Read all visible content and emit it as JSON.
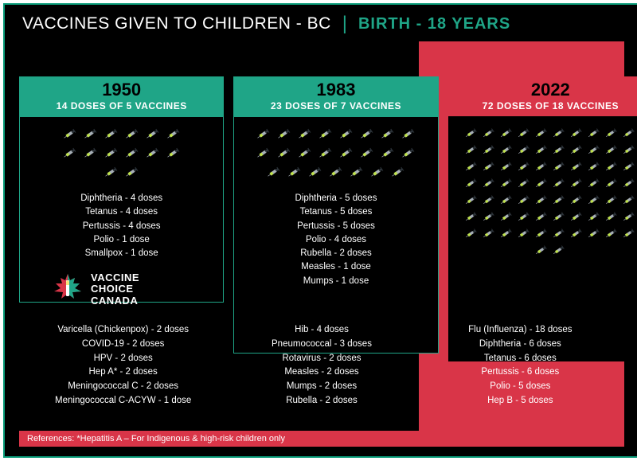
{
  "title": {
    "left": "VACCINES GIVEN TO CHILDREN - BC",
    "divider": "|",
    "right": "BIRTH - 18 YEARS"
  },
  "colors": {
    "green": "#1fa587",
    "red": "#d93548",
    "black": "#000000",
    "white": "#ffffff",
    "syringe_body": "#a8b0b8",
    "syringe_plunger": "#2b3238",
    "syringe_fluid": "#bfe24b"
  },
  "panels": [
    {
      "id": "p1950",
      "year": "1950",
      "subtitle": "14 DOSES OF 5 VACCINES",
      "accent": "green",
      "syringe_count": 14,
      "cols": 6,
      "list": [
        "Diphtheria - 4 doses",
        "Tetanus - 4 doses",
        "Pertussis - 4 doses",
        "Polio - 1 dose",
        "Smallpox - 1 dose"
      ]
    },
    {
      "id": "p1983",
      "year": "1983",
      "subtitle": "23 DOSES OF 7 VACCINES",
      "accent": "green",
      "syringe_count": 23,
      "cols": 8,
      "list": [
        "Diphtheria - 5 doses",
        "Tetanus - 5 doses",
        "Pertussis - 5 doses",
        "Polio - 4 doses",
        "Rubella - 2 doses",
        "Measles - 1 dose",
        "Mumps - 1 dose"
      ]
    },
    {
      "id": "p2022",
      "year": "2022",
      "subtitle": "72 DOSES OF 18 VACCINES",
      "accent": "red",
      "syringe_count": 72,
      "cols": 10,
      "list": []
    }
  ],
  "logo": {
    "line1": "VACCINE",
    "line2": "CHOICE",
    "line3": "CANADA"
  },
  "bottom_cols": [
    [
      "Varicella (Chickenpox) - 2 doses",
      "COVID-19 - 2 doses",
      "HPV - 2 doses",
      "Hep A* - 2 doses",
      "Meningococcal C - 2 doses",
      "Meningococcal C-ACYW - 1 dose"
    ],
    [
      "Hib - 4 doses",
      "Pneumococcal - 3 doses",
      "Rotavirus - 2 doses",
      "Measles - 2 doses",
      "Mumps - 2 doses",
      "Rubella - 2 doses"
    ],
    [
      "Flu (Influenza) - 18 doses",
      "Diphtheria - 6 doses",
      "Tetanus - 6 doses",
      "Pertussis - 6 doses",
      "Polio - 5 doses",
      "Hep B - 5 doses"
    ]
  ],
  "reference": "References: *Hepatitis A – For Indigenous & high-risk children only"
}
